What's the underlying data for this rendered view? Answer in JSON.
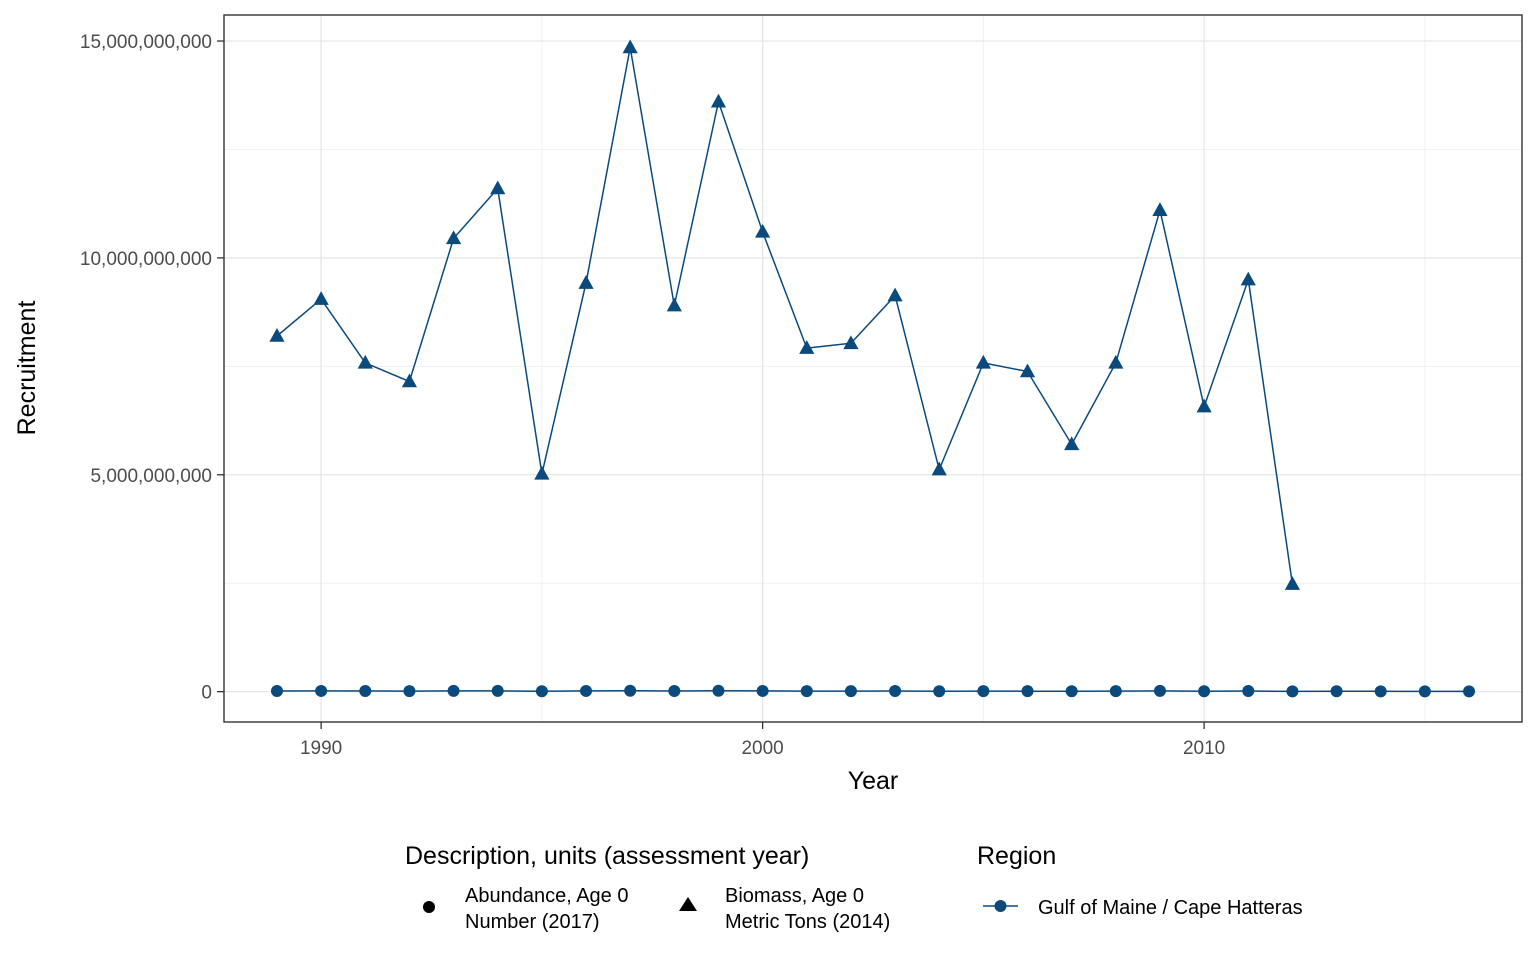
{
  "chart_data": {
    "type": "line",
    "xlabel": "Year",
    "ylabel": "Recruitment",
    "xlim": [
      1987.8,
      2017.2
    ],
    "ylim": [
      -700000000,
      15600000000
    ],
    "x_ticks": [
      1990,
      2000,
      2010
    ],
    "x_tick_labels": [
      "1990",
      "2000",
      "2010"
    ],
    "y_ticks": [
      0,
      5000000000,
      10000000000,
      15000000000
    ],
    "y_tick_labels": [
      "0",
      "5,000,000,000",
      "10,000,000,000",
      "15,000,000,000"
    ],
    "grid": true,
    "legend_position": "bottom",
    "series_color": "#0b4a7d",
    "series": [
      {
        "shape": "triangle",
        "x": [
          1989,
          1990,
          1991,
          1992,
          1993,
          1994,
          1995,
          1996,
          1997,
          1998,
          1999,
          2000,
          2001,
          2002,
          2003,
          2004,
          2005,
          2006,
          2007,
          2008,
          2009,
          2010,
          2011,
          2012
        ],
        "values": [
          8200000000,
          9050000000,
          7580000000,
          7150000000,
          10450000000,
          11600000000,
          5020000000,
          9420000000,
          14850000000,
          8900000000,
          13600000000,
          10600000000,
          7920000000,
          8030000000,
          9130000000,
          5120000000,
          7580000000,
          7380000000,
          5700000000,
          7580000000,
          11100000000,
          6570000000,
          9500000000,
          2480000000
        ]
      },
      {
        "shape": "circle",
        "x": [
          1989,
          1990,
          1991,
          1992,
          1993,
          1994,
          1995,
          1996,
          1997,
          1998,
          1999,
          2000,
          2001,
          2002,
          2003,
          2004,
          2005,
          2006,
          2007,
          2008,
          2009,
          2010,
          2011,
          2012,
          2013,
          2014,
          2015,
          2016
        ],
        "values": [
          15000000,
          16000000,
          14000000,
          13000000,
          17000000,
          18000000,
          9000000,
          16000000,
          21000000,
          14000000,
          20000000,
          16000000,
          13000000,
          13000000,
          15000000,
          9000000,
          12000000,
          11000000,
          9000000,
          12000000,
          17000000,
          10000000,
          14000000,
          6000000,
          9000000,
          7000000,
          6000000,
          5000000
        ]
      }
    ],
    "legends": [
      {
        "title": "Description, units (assessment year)",
        "entries": [
          {
            "shape": "circle",
            "line1": "Abundance, Age 0",
            "line2": "Number (2017)"
          },
          {
            "shape": "triangle",
            "line1": "Biomass, Age 0",
            "line2": "Metric Tons (2014)"
          }
        ]
      },
      {
        "title": "Region",
        "entries": [
          {
            "label": "Gulf of Maine / Cape Hatteras"
          }
        ]
      }
    ]
  }
}
